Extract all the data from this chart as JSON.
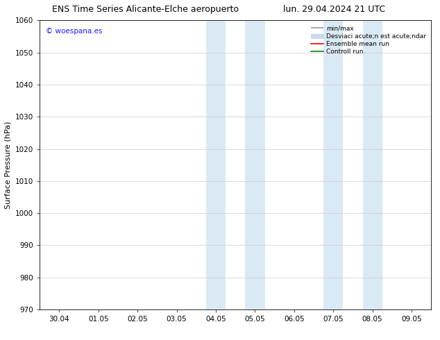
{
  "title_left": "ENS Time Series Alicante-Elche aeropuerto",
  "title_right": "lun. 29.04.2024 21 UTC",
  "ylabel": "Surface Pressure (hPa)",
  "ylim": [
    970,
    1060
  ],
  "yticks": [
    970,
    980,
    990,
    1000,
    1010,
    1020,
    1030,
    1040,
    1050,
    1060
  ],
  "xtick_labels": [
    "30.04",
    "01.05",
    "02.05",
    "03.05",
    "04.05",
    "05.05",
    "06.05",
    "07.05",
    "08.05",
    "09.05"
  ],
  "shaded_bands": [
    {
      "xstart": 3.75,
      "xend": 4.25
    },
    {
      "xstart": 4.75,
      "xend": 5.25
    },
    {
      "xstart": 6.75,
      "xend": 7.25
    },
    {
      "xstart": 7.75,
      "xend": 8.25
    }
  ],
  "shade_color": "#daeaf5",
  "watermark": "© woespana.es",
  "watermark_color": "#1a1aff",
  "legend_labels": [
    "min/max",
    "Desviaci acute;n est acute;ndar",
    "Ensemble mean run",
    "Controll run"
  ],
  "legend_colors": [
    "#999999",
    "#c8dce8",
    "#ff0000",
    "#008800"
  ],
  "bg_color": "#ffffff",
  "grid_color": "#cccccc",
  "title_fontsize": 9,
  "tick_fontsize": 7.5,
  "ylabel_fontsize": 8,
  "legend_fontsize": 6.5
}
